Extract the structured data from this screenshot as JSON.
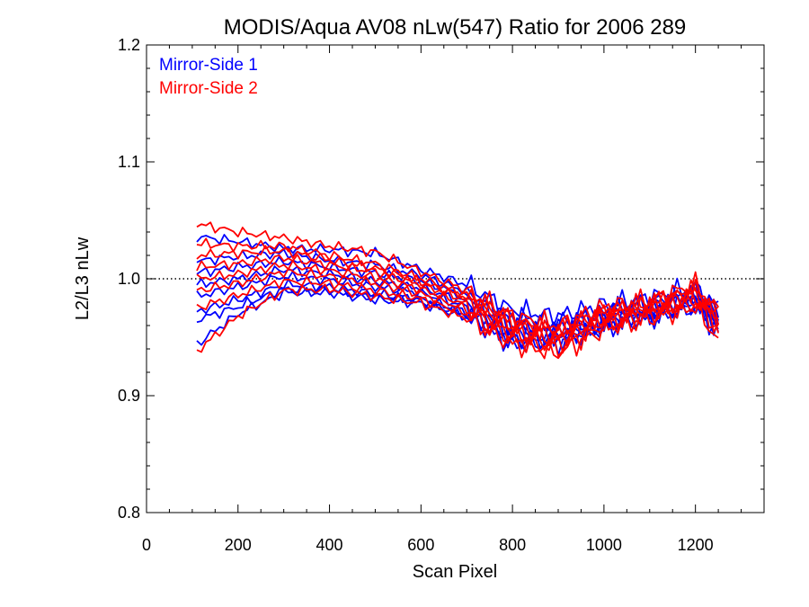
{
  "chart_data": {
    "type": "line",
    "title": "MODIS/Aqua AV08 nLw(547) Ratio for 2006 289",
    "xlabel": "Scan Pixel",
    "ylabel": "L2/L3 nLw",
    "xlim": [
      0,
      1350
    ],
    "ylim": [
      0.8,
      1.2
    ],
    "xticks": [
      0,
      200,
      400,
      600,
      800,
      1000,
      1200
    ],
    "xtick_labels": [
      "0",
      "200",
      "400",
      "600",
      "800",
      "1000",
      "1200"
    ],
    "yticks": [
      0.8,
      0.9,
      1.0,
      1.1,
      1.2
    ],
    "ytick_labels": [
      "0.8",
      "0.9",
      "1.0",
      "1.1",
      "1.2"
    ],
    "reference_line": {
      "y": 1.0,
      "style": "dotted",
      "color": "#000000"
    },
    "legend": {
      "placement": "top-left",
      "entries": [
        {
          "label": "Mirror-Side 1",
          "color": "#0000ff"
        },
        {
          "label": "Mirror-Side 2",
          "color": "#ff0000"
        }
      ]
    },
    "x_range_of_lines": [
      110,
      1250
    ],
    "series": [
      {
        "group": "Mirror-Side 1",
        "color": "#0000ff",
        "x": [
          110,
          200,
          300,
          400,
          500,
          600,
          700,
          800,
          900,
          1000,
          1100,
          1200,
          1250
        ],
        "y": [
          1.036,
          1.032,
          1.026,
          1.025,
          1.022,
          1.008,
          0.995,
          0.973,
          0.968,
          0.978,
          0.984,
          0.993,
          0.975
        ]
      },
      {
        "group": "Mirror-Side 1",
        "color": "#0000ff",
        "x": [
          110,
          200,
          300,
          400,
          500,
          600,
          700,
          800,
          900,
          1000,
          1100,
          1200,
          1250
        ],
        "y": [
          1.015,
          1.019,
          1.022,
          1.016,
          1.012,
          1.003,
          0.989,
          0.968,
          0.962,
          0.972,
          0.98,
          0.99,
          0.97
        ]
      },
      {
        "group": "Mirror-Side 1",
        "color": "#0000ff",
        "x": [
          110,
          200,
          300,
          400,
          500,
          600,
          700,
          800,
          900,
          1000,
          1100,
          1200,
          1250
        ],
        "y": [
          1.005,
          1.01,
          1.015,
          1.01,
          1.005,
          0.998,
          0.985,
          0.962,
          0.958,
          0.969,
          0.977,
          0.986,
          0.968
        ]
      },
      {
        "group": "Mirror-Side 1",
        "color": "#0000ff",
        "x": [
          110,
          200,
          300,
          400,
          500,
          600,
          700,
          800,
          900,
          1000,
          1100,
          1200,
          1250
        ],
        "y": [
          0.995,
          1.0,
          1.008,
          1.004,
          0.998,
          0.992,
          0.98,
          0.958,
          0.955,
          0.966,
          0.974,
          0.983,
          0.965
        ]
      },
      {
        "group": "Mirror-Side 1",
        "color": "#0000ff",
        "x": [
          110,
          200,
          300,
          400,
          500,
          600,
          700,
          800,
          900,
          1000,
          1100,
          1200,
          1250
        ],
        "y": [
          0.985,
          0.993,
          1.002,
          0.999,
          0.993,
          0.988,
          0.976,
          0.953,
          0.952,
          0.963,
          0.971,
          0.98,
          0.962
        ]
      },
      {
        "group": "Mirror-Side 1",
        "color": "#0000ff",
        "x": [
          110,
          200,
          300,
          400,
          500,
          600,
          700,
          800,
          900,
          1000,
          1100,
          1200,
          1250
        ],
        "y": [
          0.972,
          0.982,
          0.995,
          0.993,
          0.987,
          0.983,
          0.971,
          0.947,
          0.948,
          0.96,
          0.968,
          0.978,
          0.958
        ]
      },
      {
        "group": "Mirror-Side 1",
        "color": "#0000ff",
        "x": [
          110,
          200,
          300,
          400,
          500,
          600,
          700,
          800,
          900,
          1000,
          1100,
          1200,
          1250
        ],
        "y": [
          0.944,
          0.97,
          0.988,
          0.988,
          0.982,
          0.979,
          0.967,
          0.943,
          0.945,
          0.957,
          0.966,
          0.975,
          0.955
        ]
      },
      {
        "group": "Mirror-Side 1",
        "color": "#0000ff",
        "x": [
          110,
          200,
          300,
          400,
          500,
          600,
          700,
          800,
          900,
          1000,
          1100,
          1200,
          1250
        ],
        "y": [
          0.965,
          0.976,
          0.991,
          0.99,
          0.985,
          0.981,
          0.969,
          0.95,
          0.95,
          0.962,
          0.97,
          0.981,
          0.961
        ]
      },
      {
        "group": "Mirror-Side 2",
        "color": "#ff0000",
        "x": [
          110,
          200,
          300,
          400,
          500,
          600,
          700,
          800,
          900,
          1000,
          1100,
          1200,
          1250
        ],
        "y": [
          1.047,
          1.04,
          1.035,
          1.028,
          1.023,
          1.006,
          0.99,
          0.968,
          0.96,
          0.976,
          0.982,
          0.995,
          0.972
        ]
      },
      {
        "group": "Mirror-Side 2",
        "color": "#ff0000",
        "x": [
          110,
          200,
          300,
          400,
          500,
          600,
          700,
          800,
          900,
          1000,
          1100,
          1200,
          1250
        ],
        "y": [
          1.03,
          1.028,
          1.028,
          1.02,
          1.013,
          1.0,
          0.986,
          0.964,
          0.956,
          0.972,
          0.979,
          0.991,
          0.968
        ]
      },
      {
        "group": "Mirror-Side 2",
        "color": "#ff0000",
        "x": [
          110,
          200,
          300,
          400,
          500,
          600,
          700,
          800,
          900,
          1000,
          1100,
          1200,
          1250
        ],
        "y": [
          1.01,
          1.013,
          1.018,
          1.012,
          1.006,
          0.995,
          0.982,
          0.96,
          0.952,
          0.969,
          0.976,
          0.988,
          0.966
        ]
      },
      {
        "group": "Mirror-Side 2",
        "color": "#ff0000",
        "x": [
          110,
          200,
          300,
          400,
          500,
          600,
          700,
          800,
          900,
          1000,
          1100,
          1200,
          1250
        ],
        "y": [
          1.0,
          1.004,
          1.012,
          1.007,
          1.001,
          0.991,
          0.978,
          0.956,
          0.948,
          0.966,
          0.974,
          0.985,
          0.963
        ]
      },
      {
        "group": "Mirror-Side 2",
        "color": "#ff0000",
        "x": [
          110,
          200,
          300,
          400,
          500,
          600,
          700,
          800,
          900,
          1000,
          1100,
          1200,
          1250
        ],
        "y": [
          0.99,
          0.996,
          1.006,
          1.002,
          0.996,
          0.987,
          0.974,
          0.952,
          0.944,
          0.963,
          0.971,
          0.982,
          0.96
        ]
      },
      {
        "group": "Mirror-Side 2",
        "color": "#ff0000",
        "x": [
          110,
          200,
          300,
          400,
          500,
          600,
          700,
          800,
          900,
          1000,
          1100,
          1200,
          1250
        ],
        "y": [
          0.975,
          0.986,
          0.998,
          0.996,
          0.99,
          0.983,
          0.97,
          0.948,
          0.94,
          0.96,
          0.968,
          0.979,
          0.957
        ]
      },
      {
        "group": "Mirror-Side 2",
        "color": "#ff0000",
        "x": [
          110,
          200,
          300,
          400,
          500,
          600,
          700,
          800,
          900,
          1000,
          1100,
          1200,
          1250
        ],
        "y": [
          0.938,
          0.968,
          0.99,
          0.991,
          0.985,
          0.979,
          0.966,
          0.944,
          0.936,
          0.957,
          0.966,
          0.976,
          0.947
        ]
      },
      {
        "group": "Mirror-Side 2",
        "color": "#ff0000",
        "x": [
          110,
          200,
          300,
          400,
          500,
          600,
          700,
          800,
          900,
          1000,
          1100,
          1200,
          1250
        ],
        "y": [
          1.02,
          1.022,
          1.024,
          1.016,
          1.009,
          0.997,
          0.984,
          0.962,
          0.954,
          0.97,
          0.977,
          0.99,
          0.967
        ]
      }
    ]
  }
}
